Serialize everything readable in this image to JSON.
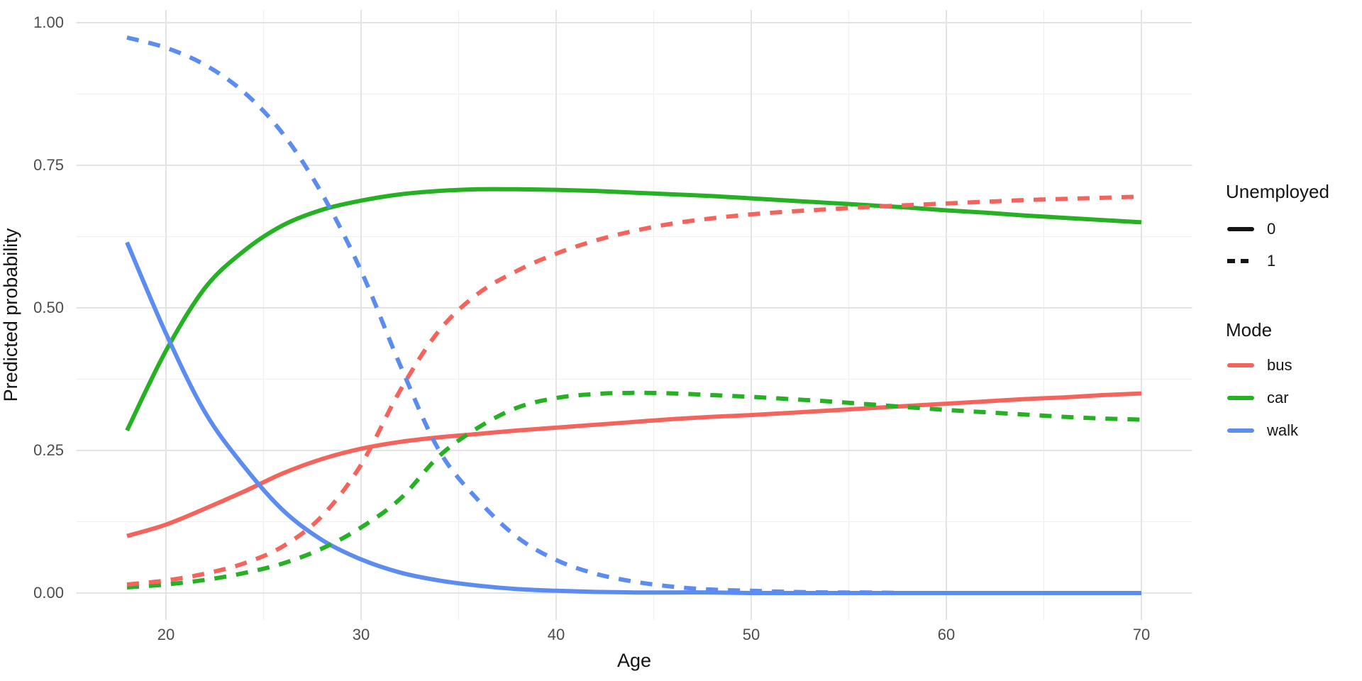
{
  "axes": {
    "x": {
      "label": "Age",
      "ticks": [
        "20",
        "30",
        "40",
        "50",
        "60",
        "70"
      ]
    },
    "y": {
      "label": "Predicted probability",
      "ticks": [
        "0.00",
        "0.25",
        "0.50",
        "0.75",
        "1.00"
      ]
    }
  },
  "legend": {
    "linetype": {
      "title": "Unemployed",
      "items": [
        {
          "label": "0",
          "linetype": "solid"
        },
        {
          "label": "1",
          "linetype": "dashed"
        }
      ]
    },
    "color": {
      "title": "Mode",
      "items": [
        {
          "label": "bus",
          "color": "#F4645D"
        },
        {
          "label": "car",
          "color": "#26B125"
        },
        {
          "label": "walk",
          "color": "#5C8CF0"
        }
      ]
    }
  },
  "style_colors": {
    "grid_major": "#E4E4E4",
    "grid_minor": "#F0F0F0",
    "tick_text": "#4d4d4d",
    "title_text": "#141414"
  },
  "chart_data": {
    "type": "line",
    "title": "",
    "xlabel": "Age",
    "ylabel": "Predicted probability",
    "xlim": [
      15.4,
      72.6
    ],
    "ylim": [
      -0.047,
      1.022
    ],
    "x_ticks": [
      20,
      30,
      40,
      50,
      60,
      70
    ],
    "y_ticks": [
      0,
      0.25,
      0.5,
      0.75,
      1
    ],
    "grid": "major+minor",
    "legend_position": "right",
    "x": [
      18,
      20,
      22,
      24,
      26,
      28,
      30,
      32,
      34,
      36,
      38,
      40,
      42,
      44,
      46,
      48,
      50,
      52,
      54,
      56,
      58,
      60,
      62,
      64,
      66,
      68,
      70
    ],
    "series": [
      {
        "name": "car, unemployed=0",
        "mode": "car",
        "unemployed": "0",
        "color": "#26B125",
        "linetype": "solid",
        "values": [
          0.285,
          0.425,
          0.535,
          0.6,
          0.645,
          0.672,
          0.688,
          0.699,
          0.705,
          0.708,
          0.708,
          0.707,
          0.705,
          0.702,
          0.699,
          0.696,
          0.692,
          0.688,
          0.684,
          0.68,
          0.676,
          0.671,
          0.667,
          0.662,
          0.658,
          0.654,
          0.65
        ]
      },
      {
        "name": "bus, unemployed=0",
        "mode": "bus",
        "unemployed": "0",
        "color": "#F4645D",
        "linetype": "solid",
        "values": [
          0.1,
          0.12,
          0.148,
          0.178,
          0.21,
          0.235,
          0.253,
          0.265,
          0.273,
          0.279,
          0.285,
          0.29,
          0.295,
          0.3,
          0.305,
          0.309,
          0.312,
          0.316,
          0.32,
          0.324,
          0.328,
          0.332,
          0.336,
          0.34,
          0.343,
          0.347,
          0.35
        ]
      },
      {
        "name": "walk, unemployed=0",
        "mode": "walk",
        "unemployed": "0",
        "color": "#5C8CF0",
        "linetype": "solid",
        "values": [
          0.615,
          0.455,
          0.317,
          0.222,
          0.145,
          0.093,
          0.059,
          0.036,
          0.022,
          0.013,
          0.007,
          0.004,
          0.002,
          0.001,
          0.001,
          0.001,
          0.0,
          0.0,
          0.0,
          0.0,
          0.0,
          0.0,
          0.0,
          0.0,
          0.0,
          0.0,
          0.0
        ]
      },
      {
        "name": "car, unemployed=1",
        "mode": "car",
        "unemployed": "1",
        "color": "#26B125",
        "linetype": "dashed",
        "values": [
          0.01,
          0.015,
          0.023,
          0.035,
          0.052,
          0.078,
          0.115,
          0.165,
          0.24,
          0.29,
          0.325,
          0.342,
          0.349,
          0.351,
          0.35,
          0.347,
          0.344,
          0.34,
          0.336,
          0.331,
          0.326,
          0.321,
          0.317,
          0.313,
          0.309,
          0.306,
          0.304
        ]
      },
      {
        "name": "bus, unemployed=1",
        "mode": "bus",
        "unemployed": "1",
        "color": "#F4645D",
        "linetype": "dashed",
        "values": [
          0.015,
          0.022,
          0.034,
          0.052,
          0.082,
          0.135,
          0.225,
          0.355,
          0.46,
          0.525,
          0.565,
          0.595,
          0.618,
          0.635,
          0.648,
          0.657,
          0.664,
          0.669,
          0.673,
          0.677,
          0.68,
          0.683,
          0.686,
          0.689,
          0.691,
          0.693,
          0.695
        ]
      },
      {
        "name": "walk, unemployed=1",
        "mode": "walk",
        "unemployed": "1",
        "color": "#5C8CF0",
        "linetype": "dashed",
        "values": [
          0.974,
          0.956,
          0.926,
          0.878,
          0.805,
          0.7,
          0.565,
          0.4,
          0.25,
          0.163,
          0.098,
          0.058,
          0.034,
          0.02,
          0.011,
          0.006,
          0.004,
          0.002,
          0.001,
          0.001,
          0.0,
          0.0,
          0.0,
          0.0,
          0.0,
          0.0,
          0.0
        ]
      }
    ]
  }
}
